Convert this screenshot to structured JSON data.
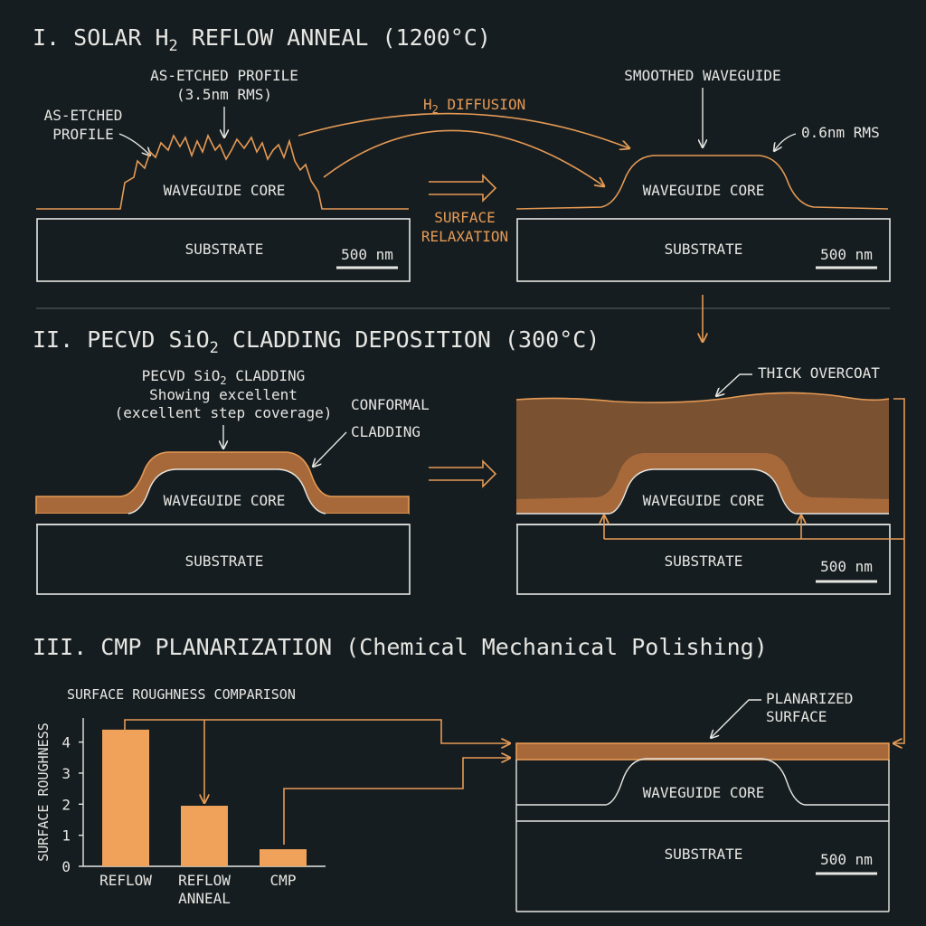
{
  "section1": {
    "title": "I. SOLAR H",
    "title_sub": "2",
    "title_tail": " REFLOW ANNEAL (1200°C)",
    "as_etched_top_line1": "AS-ETCHED PROFILE",
    "as_etched_top_line2": "(3.5nm RMS)",
    "as_etched_left_line1": "AS-ETCHED",
    "as_etched_left_line2": "PROFILE",
    "core_left": "WAVEGUIDE CORE",
    "substrate_left": "SUBSTRATE",
    "scale_left": "500 nm",
    "h2_diffusion": "H",
    "h2_sub": "2",
    "h2_tail": " DIFFUSION",
    "surface_relax_line1": "SURFACE",
    "surface_relax_line2": "RELAXATION",
    "smoothed": "SMOOTHED WAVEGUIDE",
    "rms_after": "0.6nm RMS",
    "core_right": "WAVEGUIDE CORE",
    "substrate_right": "SUBSTRATE",
    "scale_right": "500 nm"
  },
  "section2": {
    "title": "II. PECVD SiO",
    "title_sub": "2",
    "title_tail": " CLADDING DEPOSITION (300°C)",
    "cladding_line1": "PECVD SiO",
    "cladding_line1_sub": "2",
    "cladding_line1_tail": " CLADDING",
    "cladding_line2": "Showing excellent",
    "cladding_line3": "(excellent step coverage)",
    "conformal_line1": "CONFORMAL",
    "conformal_line2": "CLADDING",
    "core_left": "WAVEGUIDE CORE",
    "substrate_left": "SUBSTRATE",
    "thick_overcoat": "THICK OVERCOAT",
    "core_right": "WAVEGUIDE CORE",
    "substrate_right": "SUBSTRATE",
    "scale_right": "500 nm"
  },
  "section3": {
    "title": "III. CMP PLANARIZATION (Chemical Mechanical Polishing)",
    "planarized_line1": "PLANARIZED",
    "planarized_line2": "SURFACE",
    "core": "WAVEGUIDE CORE",
    "substrate": "SUBSTRATE",
    "scale": "500 nm"
  },
  "chart_data": {
    "type": "bar",
    "title": "SURFACE ROUGHNESS COMPARISON",
    "ylabel": "SURFACE ROUGHNESS",
    "xlabel": "",
    "categories": [
      "REFLOW",
      "REFLOW ANNEAL",
      "CMP"
    ],
    "category_lines": [
      [
        "REFLOW"
      ],
      [
        "REFLOW",
        "ANNEAL"
      ],
      [
        "CMP"
      ]
    ],
    "values": [
      4.4,
      1.95,
      0.55
    ],
    "ylim": [
      0,
      4.6
    ],
    "yticks": [
      0,
      1,
      2,
      3,
      4
    ],
    "bar_color": "#f0a25a",
    "grid": false
  },
  "colors": {
    "background": "#161d20",
    "line": "#e6e6e2",
    "accent": "#e59a55",
    "cladding_fill": "#a8693a",
    "overcoat_fill": "#7a5232"
  }
}
